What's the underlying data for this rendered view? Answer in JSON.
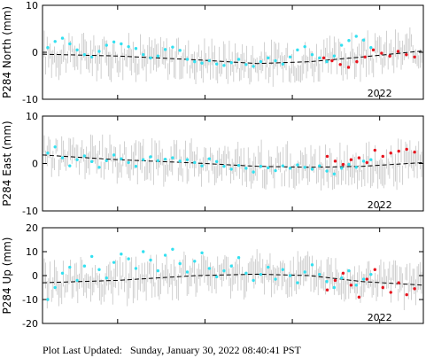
{
  "footer": {
    "label": "Plot Last Updated:",
    "value": "Sunday, January 30, 2022 08:40:41 PST"
  },
  "chart_data": [
    {
      "type": "scatter",
      "ylabel": "P284 North (mm)",
      "ylim": [
        -10,
        10
      ],
      "yticks": [
        -10,
        0,
        10
      ],
      "xlim": [
        2020.07,
        2022.25
      ],
      "xtick_labels": [
        {
          "x": 2022.0,
          "label": "2022"
        }
      ],
      "trend": {
        "x": [
          2020.07,
          2020.5,
          2020.95,
          2021.3,
          2021.6,
          2021.9,
          2022.25
        ],
        "y": [
          -0.4,
          -0.8,
          -1.6,
          -2.4,
          -2.0,
          -1.0,
          0.3
        ]
      },
      "series": [
        {
          "color": "#33e0f0",
          "x_start": 2020.1,
          "x_end": 2021.95,
          "y": [
            1.0,
            2.3,
            3.0,
            1.8,
            0.5,
            -0.5,
            -1.0,
            0.2,
            1.5,
            2.2,
            1.8,
            1.2,
            0.8,
            -0.5,
            -1.2,
            -0.8,
            0.6,
            1.1,
            0.4,
            -1.5,
            -2.0,
            -2.3,
            -1.8,
            -2.5,
            -2.8,
            -2.2,
            -1.5,
            -2.6,
            -3.0,
            -2.0,
            -1.2,
            -1.8,
            -2.5,
            -1.0,
            0.5,
            1.2,
            -0.5,
            -1.2,
            -2.0,
            -0.8,
            1.5,
            2.5,
            3.4,
            2.6,
            1.0
          ]
        },
        {
          "color": "#e8141e",
          "x_start": 2021.68,
          "x_end": 2022.2,
          "y": [
            -1.2,
            -1.8,
            -2.6,
            -3.2,
            -2.0,
            -1.0,
            0.5,
            -0.2,
            -0.8,
            0.2,
            -0.5,
            -1.0
          ]
        }
      ]
    },
    {
      "type": "scatter",
      "ylabel": "P284 East (mm)",
      "ylim": [
        -10,
        10
      ],
      "yticks": [
        -10,
        0,
        10
      ],
      "xlim": [
        2020.07,
        2022.25
      ],
      "xtick_labels": [
        {
          "x": 2022.0,
          "label": "2022"
        }
      ],
      "trend": {
        "x": [
          2020.07,
          2020.5,
          2020.95,
          2021.3,
          2021.6,
          2021.9,
          2022.25
        ],
        "y": [
          1.8,
          0.8,
          0.1,
          -0.6,
          -0.8,
          -0.6,
          0.2
        ]
      },
      "series": [
        {
          "color": "#33e0f0",
          "x_start": 2020.1,
          "x_end": 2021.95,
          "y": [
            2.2,
            3.5,
            1.2,
            -0.5,
            0.8,
            1.6,
            0.4,
            -0.8,
            0.6,
            1.8,
            1.0,
            0.2,
            -0.6,
            0.8,
            1.4,
            0.6,
            0.9,
            1.2,
            0.5,
            0.8,
            0.2,
            -0.5,
            1.0,
            0.4,
            -0.6,
            -1.2,
            -0.4,
            -1.0,
            -1.8,
            -0.6,
            -0.9,
            -1.5,
            -0.5,
            -1.0,
            -0.3,
            -0.8,
            -1.2,
            -0.5,
            -1.6,
            -2.2,
            -1.0,
            -0.2,
            -0.8,
            0.5,
            0.8
          ]
        },
        {
          "color": "#e8141e",
          "x_start": 2021.7,
          "x_end": 2022.2,
          "y": [
            1.5,
            0.5,
            -0.2,
            0.8,
            1.2,
            0.2,
            2.8,
            1.5,
            2.2,
            2.6,
            3.0,
            2.4
          ]
        }
      ]
    },
    {
      "type": "scatter",
      "ylabel": "P284 Up (mm)",
      "ylim": [
        -20,
        20
      ],
      "yticks": [
        -20,
        -10,
        0,
        10,
        20
      ],
      "xlim": [
        2020.07,
        2022.25
      ],
      "xtick_labels": [
        {
          "x": 2022.0,
          "label": "2022"
        }
      ],
      "trend": {
        "x": [
          2020.07,
          2020.5,
          2020.95,
          2021.3,
          2021.6,
          2021.9,
          2022.25
        ],
        "y": [
          -3.0,
          -2.0,
          0.0,
          0.6,
          0.0,
          -2.5,
          -4.0
        ]
      },
      "series": [
        {
          "color": "#33e0f0",
          "x_start": 2020.1,
          "x_end": 2021.95,
          "y": [
            -10.0,
            -5.0,
            1.0,
            3.5,
            -2.0,
            4.0,
            8.0,
            2.5,
            -1.0,
            5.5,
            9.0,
            7.0,
            3.0,
            10.0,
            6.5,
            2.0,
            8.5,
            11.0,
            5.0,
            1.5,
            6.0,
            9.5,
            3.0,
            -0.5,
            2.0,
            4.0,
            7.5,
            1.0,
            -2.0,
            0.5,
            3.5,
            -1.5,
            2.5,
            0.0,
            -3.0,
            1.5,
            4.5,
            0.5,
            -2.5,
            -5.0,
            -1.0,
            2.0,
            -4.0,
            -1.5,
            0.5
          ]
        },
        {
          "color": "#e8141e",
          "x_start": 2021.7,
          "x_end": 2022.2,
          "y": [
            -6.0,
            -2.0,
            1.0,
            -4.0,
            -9.0,
            -1.5,
            2.5,
            -5.0,
            -7.0,
            -3.0,
            -8.0,
            -5.5
          ]
        }
      ]
    }
  ]
}
